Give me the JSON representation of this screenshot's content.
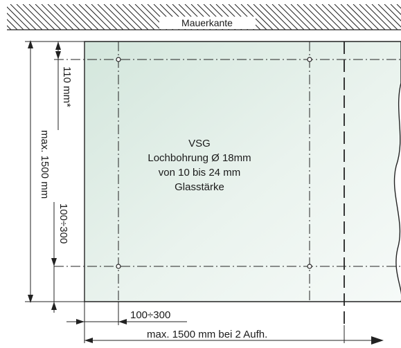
{
  "wall": {
    "label": "Mauerkante"
  },
  "glass": {
    "lines": [
      "VSG",
      "Lochbohrung Ø 18mm",
      "von 10 bis 24 mm",
      "Glasstärke"
    ]
  },
  "dimensions": {
    "top_offset": "110 mm*",
    "max_height": "max. 1500 mm",
    "left_range": "100÷300",
    "bottom_range": "100÷300",
    "max_width": "max. 1500 mm bei 2 Aufh."
  },
  "colors": {
    "glass_fill": "#dcebe4",
    "line": "#222222"
  }
}
